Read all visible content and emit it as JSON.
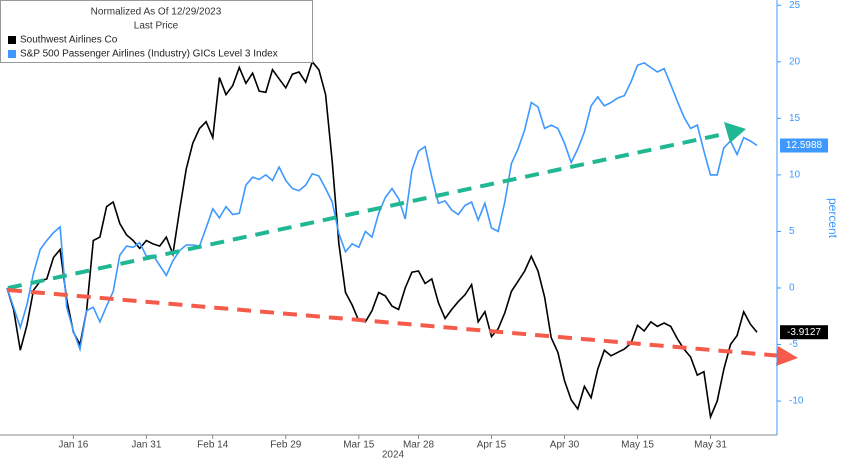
{
  "chart_data": {
    "type": "line",
    "title": "Normalized As Of 12/29/2023",
    "subtitle": "Last Price",
    "x_label": "2024",
    "y_label": "percent",
    "legend": "upper left",
    "categories": [
      null,
      null,
      null,
      null,
      null,
      null,
      null,
      null,
      null,
      null,
      "Jan 16",
      null,
      null,
      null,
      null,
      null,
      null,
      null,
      null,
      null,
      null,
      "Jan 31",
      null,
      null,
      null,
      null,
      null,
      null,
      null,
      null,
      null,
      "Feb 14",
      null,
      null,
      null,
      null,
      null,
      null,
      null,
      null,
      null,
      null,
      "Feb 29",
      null,
      null,
      null,
      null,
      null,
      null,
      null,
      null,
      null,
      null,
      "Mar 15",
      null,
      null,
      null,
      null,
      null,
      null,
      null,
      null,
      "Mar 28",
      null,
      null,
      null,
      null,
      null,
      null,
      null,
      null,
      null,
      null,
      "Apr 15",
      null,
      null,
      null,
      null,
      null,
      null,
      null,
      null,
      null,
      null,
      "Apr 30",
      null,
      null,
      null,
      null,
      null,
      null,
      null,
      null,
      null,
      null,
      "May 15",
      null,
      null,
      null,
      null,
      null,
      null,
      null,
      null,
      null,
      null,
      "May 31",
      null,
      null,
      null,
      null,
      null,
      null,
      null
    ],
    "series": [
      {
        "name": "Southwest Airlines Co",
        "color": "#000000",
        "values": [
          0,
          -1.9,
          -5.5,
          -3.3,
          -0.2,
          0.6,
          0.8,
          2.7,
          3.4,
          -1,
          -3.9,
          -5,
          -2,
          4.2,
          4.5,
          7.2,
          7.6,
          5.7,
          4.7,
          4.2,
          3.5,
          4.2,
          3.9,
          3.7,
          4.5,
          3,
          6.9,
          10.5,
          12.8,
          14.1,
          14.7,
          13.3,
          18.6,
          17.1,
          17.9,
          19.5,
          18.1,
          19,
          17.4,
          17.3,
          19.3,
          18.5,
          17.7,
          18.9,
          19.1,
          18.2,
          20,
          19.3,
          17.1,
          11.2,
          3.9,
          -0.4,
          -1.5,
          -2.9,
          -3,
          -2,
          -0.4,
          -0.7,
          -1.6,
          -1.9,
          0,
          1.4,
          1.5,
          0.4,
          0.8,
          -1.3,
          -2.7,
          -1.9,
          -1.2,
          -0.6,
          0.3,
          -3,
          -2.1,
          -4.3,
          -3.6,
          -2.2,
          -0.3,
          0.6,
          1.5,
          2.8,
          1.5,
          -0.8,
          -4.4,
          -5.7,
          -8.2,
          -9.9,
          -10.7,
          -8.7,
          -9.7,
          -7.2,
          -5.5,
          -6,
          -5.7,
          -5.4,
          -4.9,
          -3.3,
          -3.8,
          -3,
          -3.4,
          -3.1,
          -3.4,
          -4.5,
          -5.4,
          -6.1,
          -7.7,
          -7.4,
          -11.4,
          -10,
          -7.2,
          -5,
          -4.2,
          -2.1,
          -3.2,
          -3.9127
        ]
      },
      {
        "name": "S&P 500 Passenger Airlines (Industry) GICs Level 3 Index",
        "color": "#3d98ff",
        "values": [
          0,
          -1.7,
          -3.5,
          -1.5,
          1.3,
          3.4,
          4.2,
          4.9,
          5.4,
          -1.7,
          -3.8,
          -5.4,
          -2,
          -1.7,
          -3,
          -1.6,
          -0.3,
          2.9,
          3.7,
          3.6,
          4,
          2.8,
          2.9,
          2,
          1.1,
          2.4,
          3.3,
          3.8,
          3.8,
          3.7,
          5.3,
          7,
          6.2,
          7.2,
          6.5,
          6.6,
          9.1,
          9.8,
          9.6,
          10,
          9.5,
          10.7,
          9.5,
          8.8,
          8.6,
          9.1,
          10.1,
          9.9,
          8.8,
          7.6,
          4.8,
          3.2,
          3.9,
          3.6,
          5,
          4.5,
          6.6,
          8,
          8.8,
          7.9,
          6.1,
          10.4,
          12.1,
          12.5,
          9.8,
          7.5,
          7.7,
          6.9,
          6.5,
          7.3,
          7.6,
          6,
          7.5,
          5.3,
          5,
          7.6,
          11,
          12.3,
          14,
          16.4,
          16,
          14.1,
          14.4,
          14.1,
          12.8,
          11.1,
          12.3,
          13.8,
          16.1,
          16.9,
          16.1,
          16.4,
          16.8,
          17,
          18.2,
          19.7,
          19.9,
          19.5,
          19.1,
          19.4,
          18,
          16.5,
          15.1,
          14.1,
          14.4,
          12.1,
          10,
          10,
          12.4,
          13,
          11.8,
          13.3,
          13,
          12.5988
        ]
      }
    ],
    "ylim": [
      -13,
      25.2
    ],
    "yticks": [
      -10,
      -5,
      0,
      5,
      10,
      15,
      20,
      25
    ]
  }
}
